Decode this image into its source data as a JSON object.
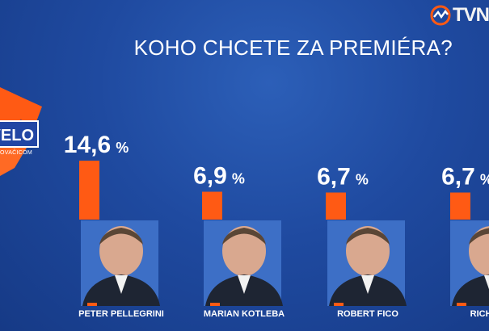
{
  "header": {
    "logo_text": "TVN",
    "title": "KOHO CHCETE ZA PREMIÉRA?"
  },
  "brand": {
    "badge_text": "VELO",
    "sub_text": "OVAČICOM"
  },
  "colors": {
    "background": "#1f4aa0",
    "bar": "#ff5a14",
    "accent": "#ff5a14",
    "text": "#ffffff"
  },
  "chart_data": {
    "type": "bar",
    "title": "KOHO CHCETE ZA PREMIÉRA?",
    "categories": [
      "PETER PELLEGRINI",
      "MARIAN KOTLEBA",
      "ROBERT FICO",
      "RICHARD"
    ],
    "values": [
      14.6,
      6.9,
      6.7,
      6.7
    ],
    "value_labels": [
      "14,6",
      "6,9",
      "6,7",
      "6,7"
    ],
    "unit": "%",
    "ylim": [
      0,
      14.6
    ]
  }
}
